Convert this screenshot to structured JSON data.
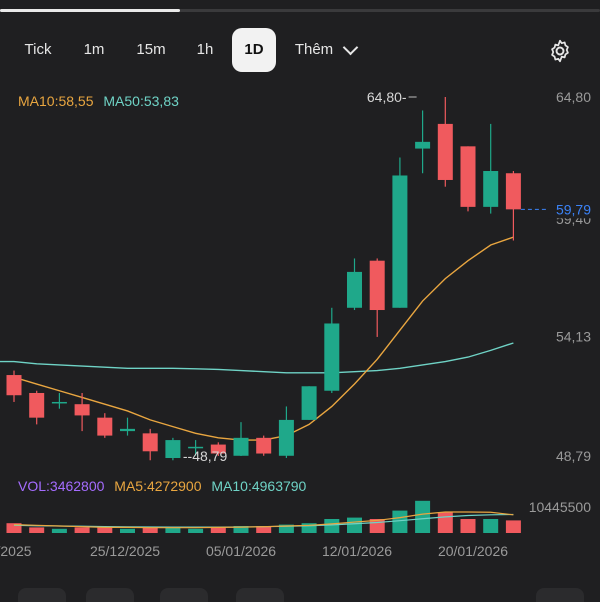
{
  "tabs": [
    {
      "label": "Tick"
    },
    {
      "label": "1m"
    },
    {
      "label": "15m"
    },
    {
      "label": "1h"
    },
    {
      "label": "1D",
      "active": true
    },
    {
      "label": "Thêm"
    }
  ],
  "ma_legend": {
    "ma10": "MA10:58,55",
    "ma50": "MA50:53,83"
  },
  "vol_legend": {
    "vol": "VOL:3462800",
    "ma5": "MA5:4272900",
    "ma10": "MA10:4963790"
  },
  "colors": {
    "up": "#1fa88a",
    "down": "#f05a5e",
    "ma10": "#e9a640",
    "ma50": "#6fd3c6",
    "vol_legend": "#a56cff",
    "current_price": "#3b82f6",
    "background": "#1f1f21"
  },
  "chart_data": {
    "type": "candlestick",
    "y_axis_labels": [
      "64,80",
      "54,13",
      "48,79"
    ],
    "y_overlap_label": "59,40",
    "high_marker": "64,80",
    "low_marker": "48,79",
    "current_price_label": "59,79",
    "x_labels": [
      "/2025",
      "25/12/2025",
      "05/01/2026",
      "12/01/2026",
      "20/01/2026"
    ],
    "volume_axis_label": "10445500",
    "candles": [
      {
        "o": 52.4,
        "c": 51.5,
        "h": 52.6,
        "l": 51.2
      },
      {
        "o": 51.6,
        "c": 50.5,
        "h": 51.7,
        "l": 50.2
      },
      {
        "o": 51.2,
        "c": 51.2,
        "h": 51.6,
        "l": 50.9
      },
      {
        "o": 51.1,
        "c": 50.6,
        "h": 51.6,
        "l": 49.9
      },
      {
        "o": 50.5,
        "c": 49.7,
        "h": 50.7,
        "l": 49.6
      },
      {
        "o": 49.9,
        "c": 50.0,
        "h": 50.5,
        "l": 49.7
      },
      {
        "o": 49.8,
        "c": 49.0,
        "h": 50.0,
        "l": 48.6
      },
      {
        "o": 48.7,
        "c": 49.5,
        "h": 49.6,
        "l": 48.6
      },
      {
        "o": 49.2,
        "c": 49.2,
        "h": 49.5,
        "l": 48.8
      },
      {
        "o": 49.3,
        "c": 48.9,
        "h": 49.4,
        "l": 48.79
      },
      {
        "o": 48.8,
        "c": 49.6,
        "h": 50.3,
        "l": 48.79
      },
      {
        "o": 49.6,
        "c": 48.9,
        "h": 49.7,
        "l": 48.8
      },
      {
        "o": 48.8,
        "c": 50.4,
        "h": 51.0,
        "l": 48.7
      },
      {
        "o": 50.4,
        "c": 51.9,
        "h": 51.9,
        "l": 50.4
      },
      {
        "o": 51.7,
        "c": 54.7,
        "h": 55.4,
        "l": 51.6
      },
      {
        "o": 55.4,
        "c": 57.0,
        "h": 57.6,
        "l": 55.3
      },
      {
        "o": 57.5,
        "c": 55.3,
        "h": 57.6,
        "l": 54.1
      },
      {
        "o": 55.4,
        "c": 61.3,
        "h": 62.1,
        "l": 55.4
      },
      {
        "o": 62.5,
        "c": 62.8,
        "h": 64.2,
        "l": 61.4
      },
      {
        "o": 63.6,
        "c": 61.1,
        "h": 64.8,
        "l": 60.8
      },
      {
        "o": 62.6,
        "c": 59.9,
        "h": 62.6,
        "l": 59.7
      },
      {
        "o": 59.9,
        "c": 61.5,
        "h": 63.6,
        "l": 59.6
      },
      {
        "o": 61.4,
        "c": 59.79,
        "h": 61.5,
        "l": 58.4
      }
    ],
    "ma10": [
      52.3,
      52.0,
      51.7,
      51.4,
      51.1,
      50.8,
      50.4,
      50.1,
      49.8,
      49.6,
      49.5,
      49.5,
      49.7,
      50.2,
      51.0,
      52.0,
      53.1,
      54.4,
      55.7,
      56.7,
      57.5,
      58.2,
      58.55
    ],
    "ma50": [
      53.0,
      52.9,
      52.85,
      52.8,
      52.75,
      52.7,
      52.7,
      52.7,
      52.68,
      52.65,
      52.6,
      52.55,
      52.5,
      52.5,
      52.5,
      52.55,
      52.6,
      52.7,
      52.85,
      53.0,
      53.2,
      53.5,
      53.83
    ],
    "volume": [
      {
        "v": 0.7,
        "up": false
      },
      {
        "v": 0.4,
        "up": false
      },
      {
        "v": 0.3,
        "up": true
      },
      {
        "v": 0.4,
        "up": false
      },
      {
        "v": 0.4,
        "up": false
      },
      {
        "v": 0.3,
        "up": true
      },
      {
        "v": 0.4,
        "up": false
      },
      {
        "v": 0.4,
        "up": true
      },
      {
        "v": 0.3,
        "up": true
      },
      {
        "v": 0.4,
        "up": false
      },
      {
        "v": 0.5,
        "up": true
      },
      {
        "v": 0.5,
        "up": false
      },
      {
        "v": 0.6,
        "up": true
      },
      {
        "v": 0.7,
        "up": true
      },
      {
        "v": 1.0,
        "up": true
      },
      {
        "v": 1.1,
        "up": true
      },
      {
        "v": 1.0,
        "up": false
      },
      {
        "v": 1.6,
        "up": true
      },
      {
        "v": 2.3,
        "up": true
      },
      {
        "v": 1.5,
        "up": false
      },
      {
        "v": 1.0,
        "up": false
      },
      {
        "v": 1.0,
        "up": true
      },
      {
        "v": 0.9,
        "up": false
      }
    ],
    "vol_ma5": [
      0.6,
      0.55,
      0.5,
      0.45,
      0.4,
      0.4,
      0.38,
      0.38,
      0.38,
      0.4,
      0.42,
      0.45,
      0.5,
      0.55,
      0.65,
      0.78,
      0.9,
      1.1,
      1.35,
      1.5,
      1.5,
      1.48,
      1.3
    ],
    "vol_ma10": [
      0.55,
      0.52,
      0.5,
      0.48,
      0.46,
      0.44,
      0.43,
      0.42,
      0.42,
      0.42,
      0.43,
      0.45,
      0.48,
      0.52,
      0.58,
      0.66,
      0.75,
      0.88,
      1.02,
      1.15,
      1.25,
      1.3,
      1.32
    ]
  }
}
